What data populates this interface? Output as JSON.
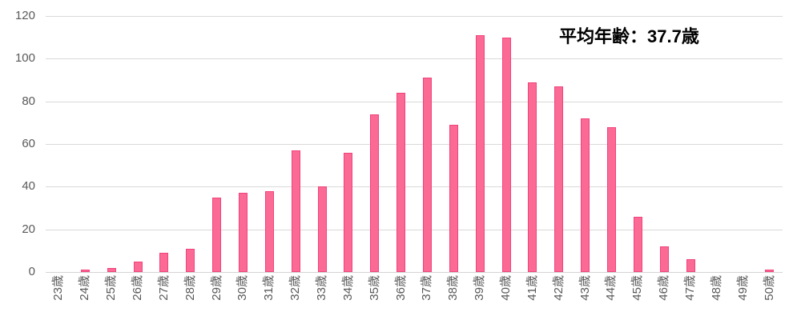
{
  "chart_data": {
    "type": "bar",
    "categories": [
      "23歳",
      "24歳",
      "25歳",
      "26歳",
      "27歳",
      "28歳",
      "29歳",
      "30歳",
      "31歳",
      "32歳",
      "33歳",
      "34歳",
      "35歳",
      "36歳",
      "37歳",
      "38歳",
      "39歳",
      "40歳",
      "41歳",
      "42歳",
      "43歳",
      "44歳",
      "45歳",
      "46歳",
      "47歳",
      "48歳",
      "49歳",
      "50歳"
    ],
    "values": [
      0,
      1,
      2,
      5,
      9,
      11,
      35,
      37,
      38,
      57,
      40,
      56,
      74,
      84,
      91,
      69,
      111,
      110,
      89,
      87,
      72,
      68,
      26,
      12,
      6,
      0,
      0,
      1
    ],
    "annotation": "平均年齢：37.7歳",
    "title": "",
    "xlabel": "",
    "ylabel": "",
    "ylim": [
      0,
      120
    ],
    "yticks": [
      0,
      20,
      40,
      60,
      80,
      100,
      120
    ],
    "grid": true,
    "legend": false,
    "legend_position": "none",
    "colors": {
      "bar_fill": "#fa6a94",
      "bar_border": "#f2437c",
      "gridline": "#d9d9d9",
      "axis_text": "#595959",
      "annotation_text": "#000000",
      "background": "#ffffff"
    }
  }
}
